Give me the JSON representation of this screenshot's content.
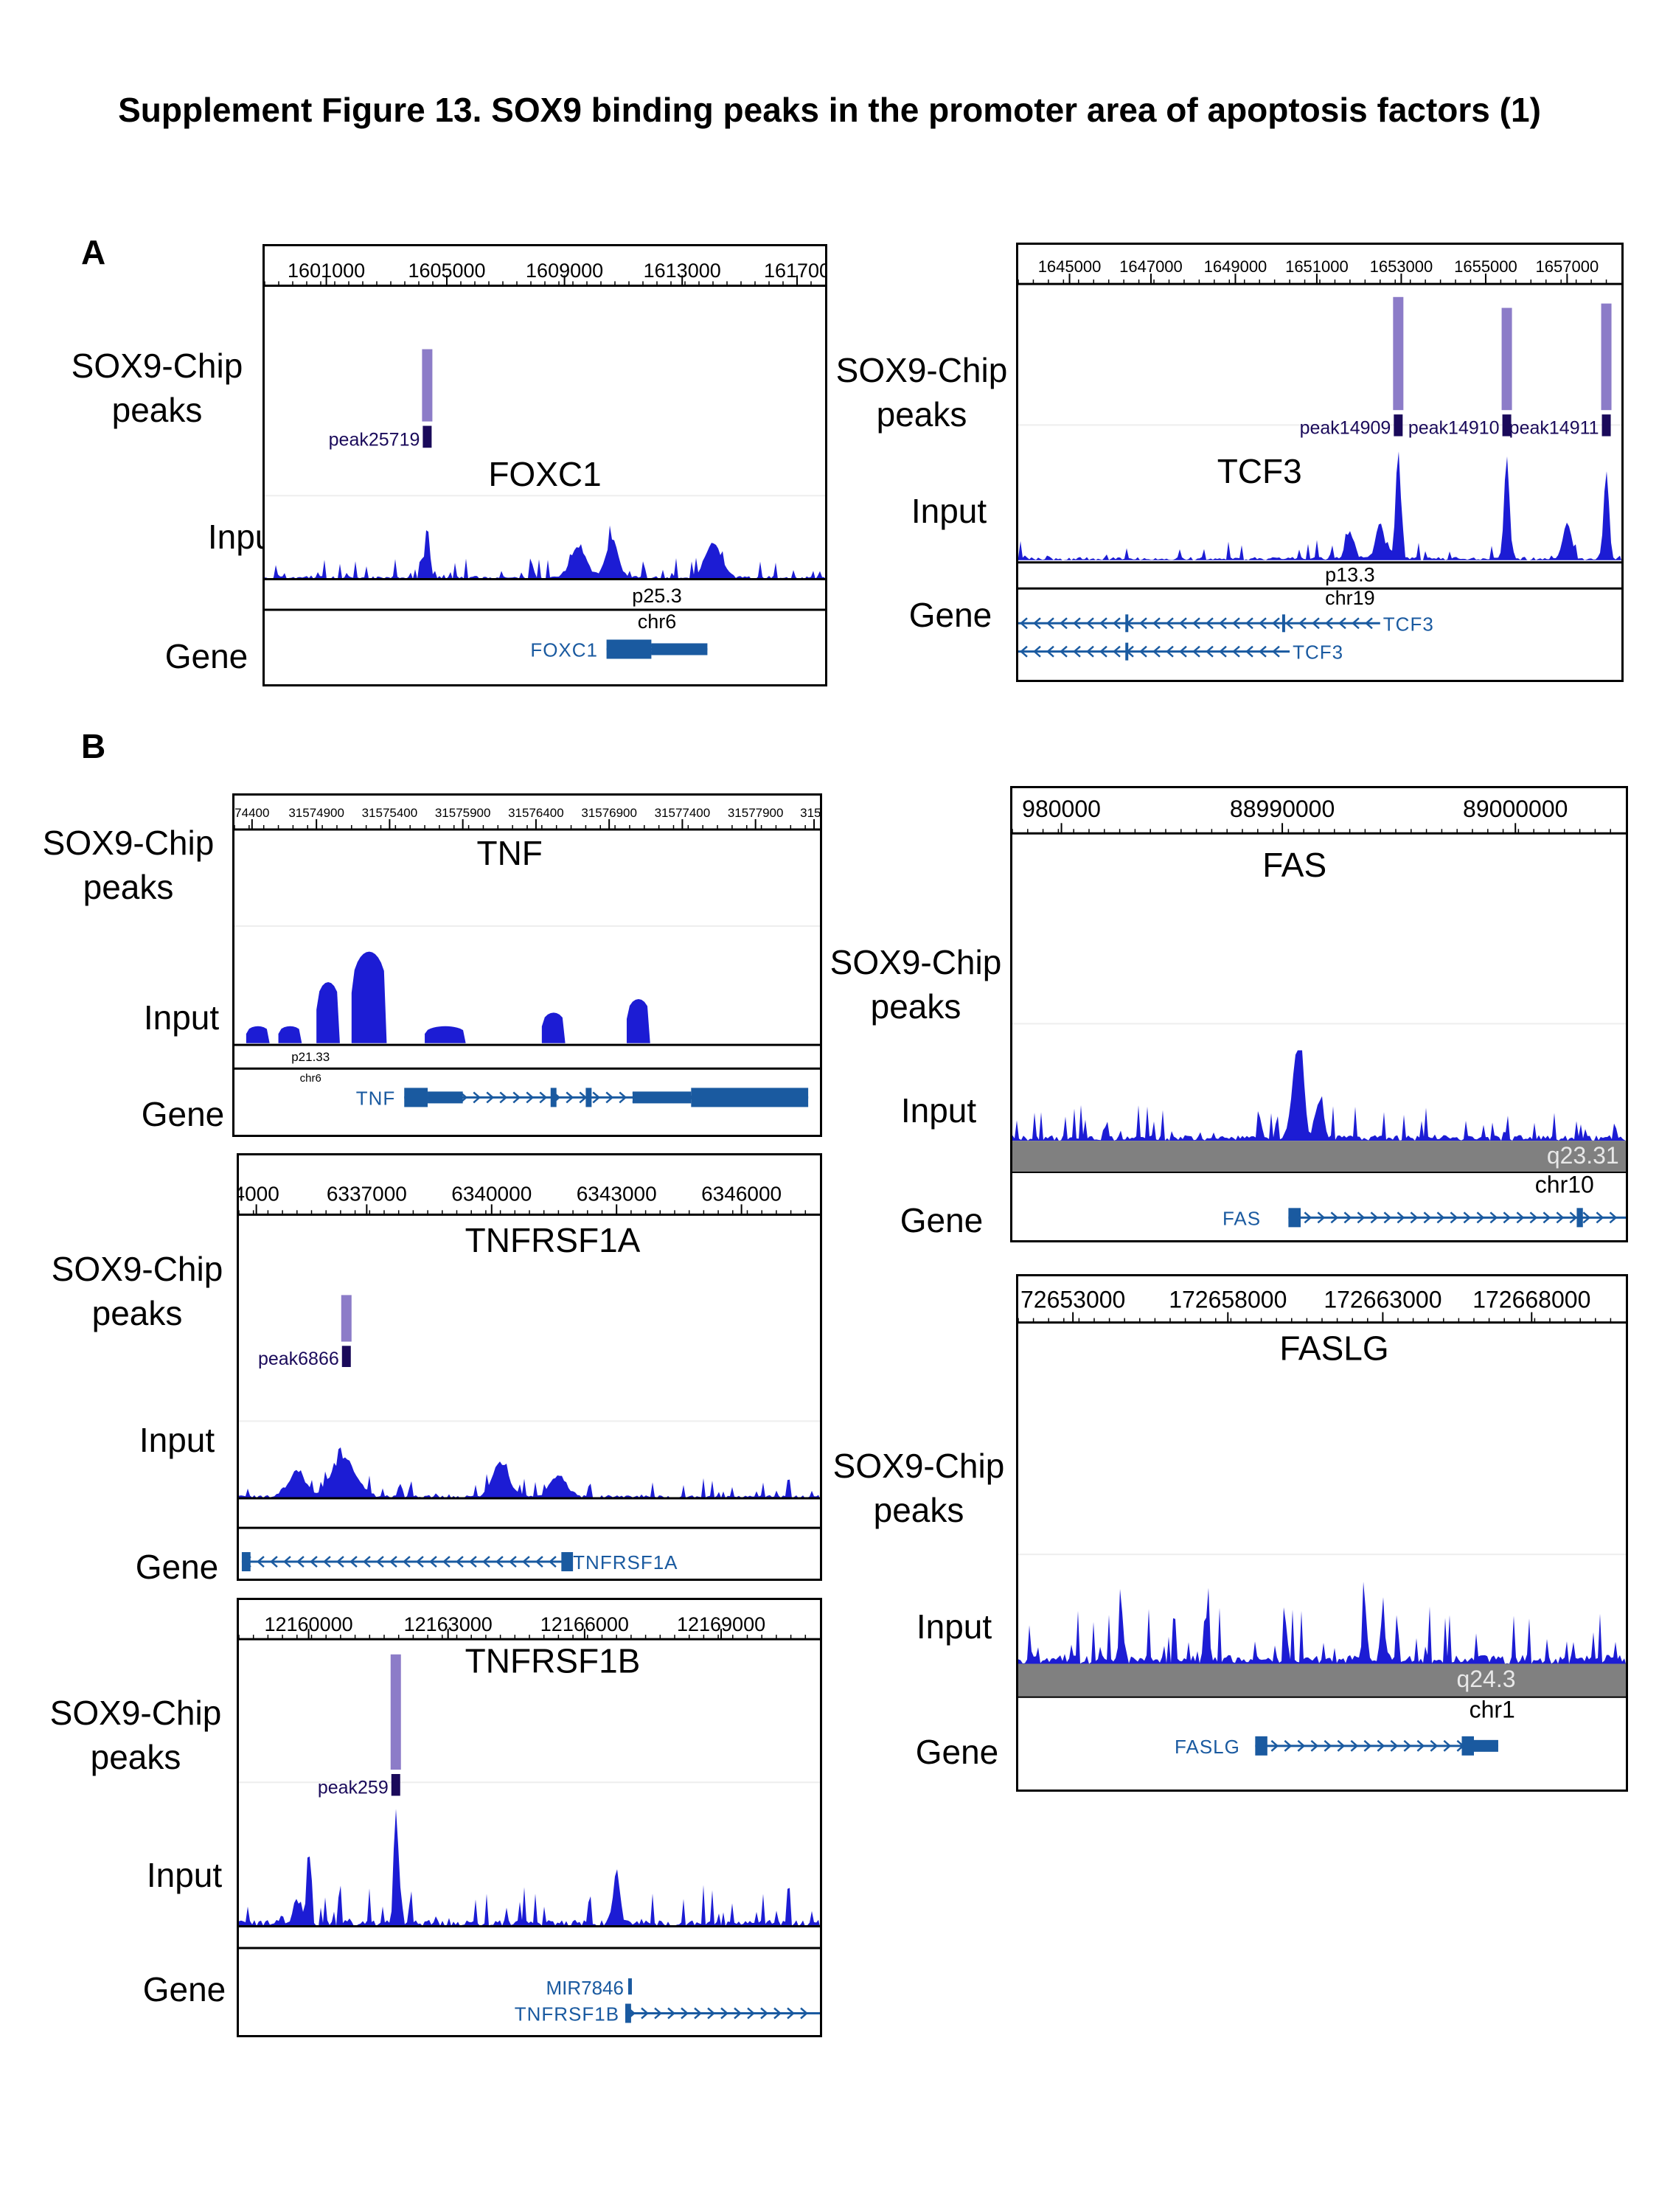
{
  "figure_title": "Supplement Figure 13. SOX9 binding peaks in the promoter area of apoptosis factors (1)",
  "sections": {
    "a": "A",
    "b": "B"
  },
  "track_labels": {
    "peaks": "SOX9-Chip peaks",
    "input": "Input",
    "gene": "Gene"
  },
  "colors": {
    "input_signal": "#1c1cd4",
    "peak_bar": "#8c7cc8",
    "peak_mark": "#1a0a5a",
    "gene": "#1a5aa0",
    "band_gray": "#808080"
  },
  "panels": {
    "foxc1": {
      "title": "FOXC1",
      "ticks": [
        "1601000",
        "1605000",
        "1609000",
        "1613000",
        "161700"
      ],
      "peaks": [
        "peak25719"
      ],
      "band": "p25.3",
      "chr": "chr6",
      "genes": [
        "FOXC1"
      ]
    },
    "tcf3": {
      "title": "TCF3",
      "ticks": [
        "1645000",
        "1647000",
        "1649000",
        "1651000",
        "1653000",
        "1655000",
        "1657000"
      ],
      "peaks": [
        "peak14909",
        "peak14910",
        "peak14911"
      ],
      "band": "p13.3",
      "chr": "chr19",
      "genes": [
        "TCF3",
        "TCF3"
      ]
    },
    "tnf": {
      "title": "TNF",
      "ticks": [
        "74400",
        "31574900",
        "31575400",
        "31575900",
        "31576400",
        "31576900",
        "31577400",
        "31577900",
        "3157"
      ],
      "peaks": [],
      "band": "p21.33",
      "chr": "chr6",
      "genes": [
        "TNF"
      ]
    },
    "tnfrsf1a": {
      "title": "TNFRSF1A",
      "ticks": [
        "4000",
        "6337000",
        "6340000",
        "6343000",
        "6346000"
      ],
      "peaks": [
        "peak6866"
      ],
      "band": "",
      "chr": "",
      "genes": [
        "TNFRSF1A"
      ]
    },
    "tnfrsf1b": {
      "title": "TNFRSF1B",
      "ticks": [
        "12160000",
        "12163000",
        "12166000",
        "12169000"
      ],
      "peaks": [
        "peak259"
      ],
      "band": "",
      "chr": "",
      "genes": [
        "MIR7846",
        "TNFRSF1B"
      ]
    },
    "fas": {
      "title": "FAS",
      "ticks": [
        "980000",
        "88990000",
        "89000000"
      ],
      "peaks": [],
      "band": "q23.31",
      "chr": "chr10",
      "genes": [
        "FAS"
      ]
    },
    "faslg": {
      "title": "FASLG",
      "ticks": [
        "72653000",
        "172658000",
        "172663000",
        "172668000"
      ],
      "peaks": [],
      "band": "q24.3",
      "chr": "chr1",
      "genes": [
        "FASLG"
      ]
    }
  }
}
